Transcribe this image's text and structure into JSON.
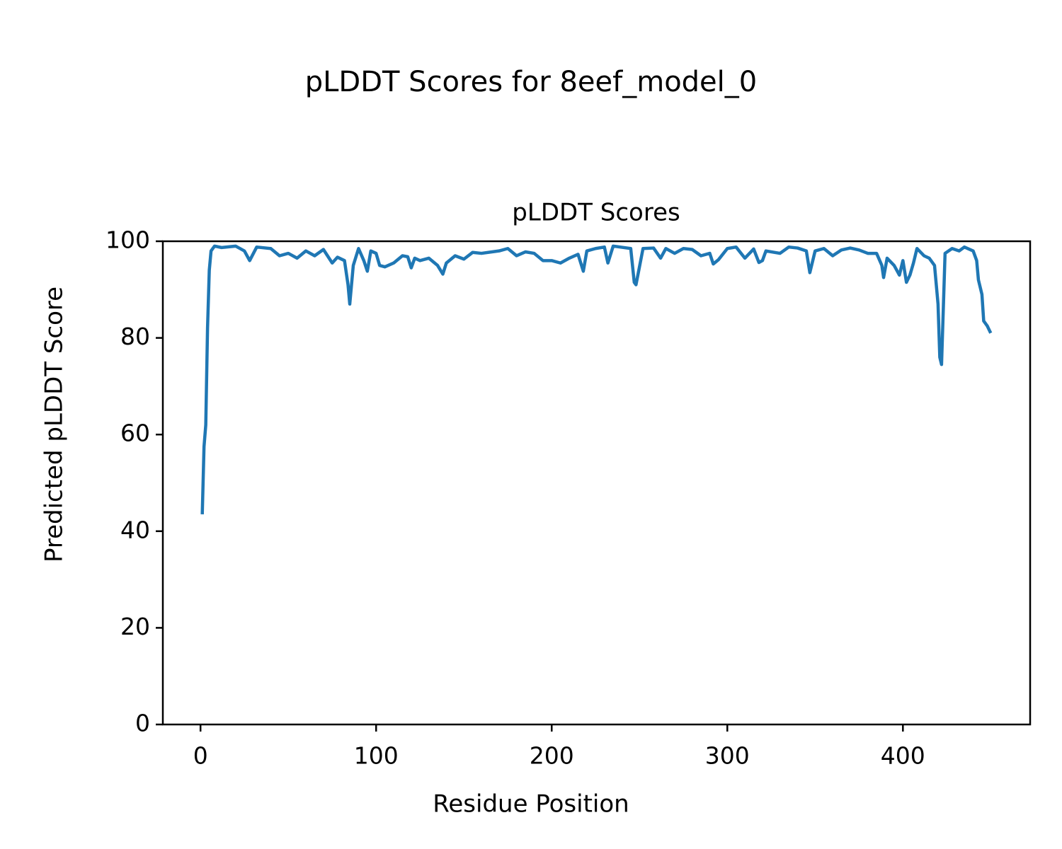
{
  "chart_data": {
    "type": "line",
    "suptitle": "pLDDT Scores for 8eef_model_0",
    "title": "pLDDT Scores",
    "xlabel": "Residue Position",
    "ylabel": "Predicted pLDDT Score",
    "xlim": [
      -21.45,
      472.45
    ],
    "xticks": [
      0,
      100,
      200,
      300,
      400
    ],
    "ylim": [
      0,
      100
    ],
    "yticks": [
      0,
      20,
      40,
      60,
      80,
      100
    ],
    "grid": false,
    "series": [
      {
        "name": "pLDDT",
        "color": "#1f77b4",
        "x": [
          1,
          2,
          3,
          4,
          5,
          6,
          8,
          12,
          20,
          25,
          28,
          32,
          40,
          45,
          50,
          55,
          60,
          65,
          70,
          75,
          78,
          82,
          84,
          85,
          87,
          90,
          93,
          95,
          97,
          100,
          102,
          105,
          110,
          115,
          118,
          120,
          122,
          125,
          130,
          135,
          138,
          140,
          145,
          150,
          155,
          160,
          170,
          175,
          180,
          185,
          190,
          195,
          200,
          205,
          210,
          215,
          218,
          220,
          225,
          230,
          232,
          235,
          245,
          247,
          248,
          252,
          258,
          262,
          265,
          270,
          275,
          280,
          285,
          290,
          292,
          295,
          300,
          305,
          310,
          315,
          318,
          320,
          322,
          330,
          335,
          340,
          345,
          347,
          350,
          355,
          360,
          365,
          370,
          375,
          380,
          385,
          388,
          389,
          391,
          395,
          398,
          400,
          402,
          404,
          406,
          408,
          412,
          415,
          418,
          420,
          421,
          422,
          424,
          428,
          432,
          435,
          440,
          442,
          443,
          445,
          446,
          448,
          450
        ],
        "values": [
          43.5,
          57.5,
          62,
          82,
          94,
          98,
          99,
          98.7,
          99,
          98,
          96,
          98.8,
          98.5,
          97,
          97.5,
          96.5,
          98,
          97,
          98.3,
          95.5,
          96.7,
          96,
          91,
          87,
          95,
          98.5,
          96,
          93.8,
          98,
          97.5,
          95,
          94.7,
          95.5,
          97,
          96.8,
          94.5,
          96.5,
          96,
          96.5,
          95,
          93.2,
          95.5,
          97,
          96.3,
          97.7,
          97.5,
          98,
          98.5,
          97,
          97.8,
          97.5,
          96,
          96,
          95.5,
          96.5,
          97.3,
          93.8,
          98,
          98.5,
          98.8,
          95.5,
          99,
          98.5,
          91.5,
          91,
          98.5,
          98.6,
          96.5,
          98.5,
          97.5,
          98.5,
          98.3,
          97,
          97.5,
          95.3,
          96.2,
          98.5,
          98.8,
          96.5,
          98.4,
          95.6,
          96,
          98,
          97.5,
          98.8,
          98.6,
          98,
          93.5,
          98,
          98.5,
          97,
          98.2,
          98.6,
          98.2,
          97.5,
          97.5,
          95,
          92.5,
          96.5,
          95,
          93,
          96,
          91.5,
          93,
          95.5,
          98.5,
          97,
          96.5,
          95,
          87,
          76,
          74.5,
          97.5,
          98.5,
          98,
          98.8,
          98,
          96,
          92,
          89,
          83.5,
          82.5,
          81
        ]
      }
    ]
  }
}
